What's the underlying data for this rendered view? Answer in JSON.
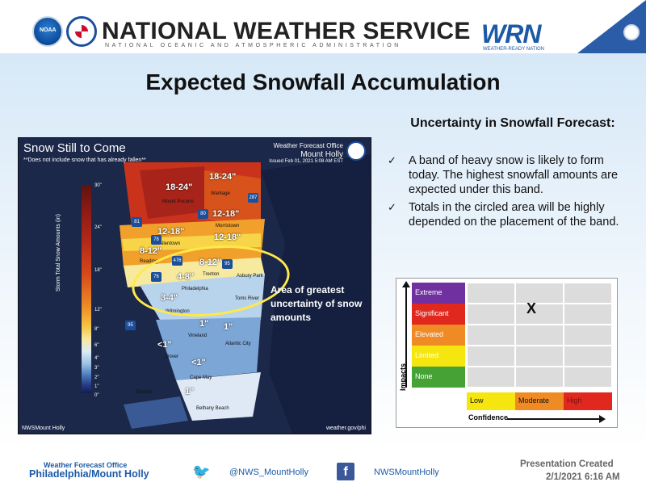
{
  "header": {
    "title": "NATIONAL WEATHER SERVICE",
    "subtitle": "NATIONAL OCEANIC AND ATMOSPHERIC ADMINISTRATION",
    "wrn_logo": "WRN",
    "wrn_tagline": "WEATHER-READY NATION"
  },
  "main_title": "Expected Snowfall Accumulation",
  "map": {
    "title": "Snow Still to Come",
    "note": "**Does not include snow that has already fallen**",
    "office_label": "Weather Forecast Office",
    "office_name": "Mount Holly",
    "issued": "Issued Feb 01, 2021 5:08 AM EST",
    "scale_label": "Storm Total Snow Amounts (in)",
    "scale_ticks": [
      "30\"",
      "24\"",
      "18\"",
      "12\"",
      "8\"",
      "6\"",
      "4\"",
      "3\"",
      "2\"",
      "1\"",
      "0\""
    ],
    "amount_labels": [
      "18-24\"",
      "18-24\"",
      "12-18\"",
      "12-18\"",
      "12-18\"",
      "8-12\"",
      "8-12\"",
      "4-8\"",
      "3-4\"",
      "1\"",
      "1\"",
      "<1\"",
      "<1\"",
      "1\""
    ],
    "cities": [
      "Wantage",
      "Mount Pocono",
      "Morristown",
      "Allentown",
      "Reading",
      "Trenton",
      "Asbury Park",
      "Philadelphia",
      "Wilmington",
      "Toms River",
      "Vineland",
      "Atlantic City",
      "Dover",
      "Cape May",
      "Easton",
      "Bethany Beach"
    ],
    "highways": [
      "287",
      "80",
      "81",
      "78",
      "476",
      "95",
      "76",
      "95"
    ],
    "annotation": "Area of greatest uncertainty of snow amounts",
    "social": "NWSMount Holly",
    "url": "weather.gov/phi"
  },
  "uncertainty": {
    "title": "Uncertainty in Snowfall Forecast:",
    "bullets": [
      "A band of heavy snow is likely to form today. The highest snowfall amounts are expected under this band.",
      "Totals in the circled area will be highly depended on the placement of the band."
    ]
  },
  "matrix": {
    "impacts_label": "Impacts",
    "confidence_label": "Confidence",
    "impacts": [
      {
        "label": "Extreme",
        "color": "#7030a0"
      },
      {
        "label": "Significant",
        "color": "#e0281e"
      },
      {
        "label": "Elevated",
        "color": "#f08a24"
      },
      {
        "label": "Limited",
        "color": "#f5e60f"
      },
      {
        "label": "None",
        "color": "#46a235"
      }
    ],
    "confidence": [
      {
        "label": "Low",
        "color": "#f5e60f"
      },
      {
        "label": "Moderate",
        "color": "#f08a24"
      },
      {
        "label": "High",
        "color": "#e0281e"
      }
    ],
    "marker": "X"
  },
  "footer": {
    "office_label": "Weather Forecast Office",
    "office_name": "Philadelphia/Mount Holly",
    "twitter": "@NWS_MountHolly",
    "facebook": "NWSMountHolly",
    "presentation_label": "Presentation Created",
    "presentation_date": "2/1/2021 6:16 AM"
  }
}
